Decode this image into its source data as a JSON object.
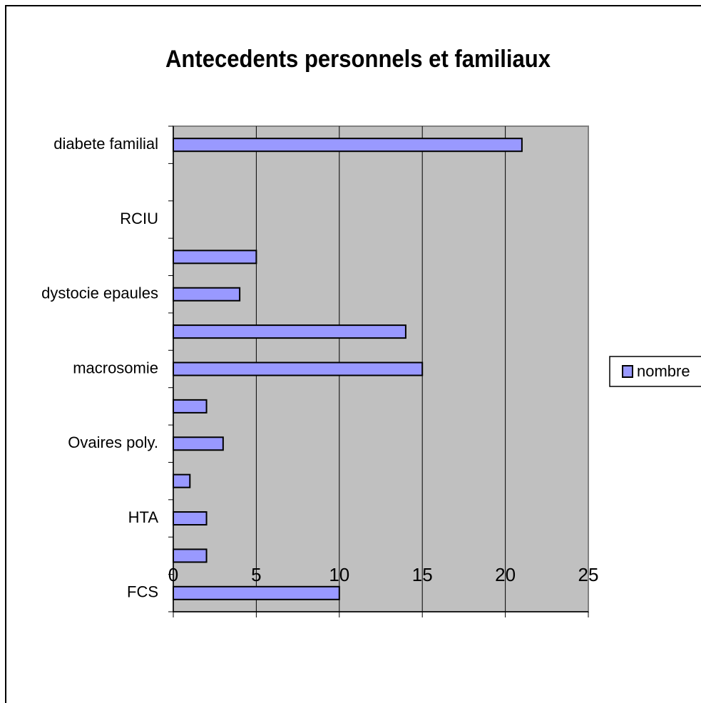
{
  "chart_data": {
    "type": "bar",
    "orientation": "horizontal",
    "title": "Antecedents personnels et familiaux",
    "categories": [
      "FCS",
      null,
      "HTA",
      null,
      "Ovaires poly.",
      null,
      "macrosomie",
      null,
      "dystocie epaules",
      null,
      "RCIU",
      null,
      "diabete familial"
    ],
    "series": [
      {
        "name": "nombre",
        "color": "#9999ff",
        "values": [
          10,
          2,
          2,
          1,
          3,
          2,
          15,
          14,
          4,
          5,
          0,
          0,
          21
        ]
      }
    ],
    "xlim": [
      0,
      25
    ],
    "xticks": [
      0,
      5,
      10,
      15,
      20,
      25
    ],
    "grid": true,
    "legend": "right"
  }
}
